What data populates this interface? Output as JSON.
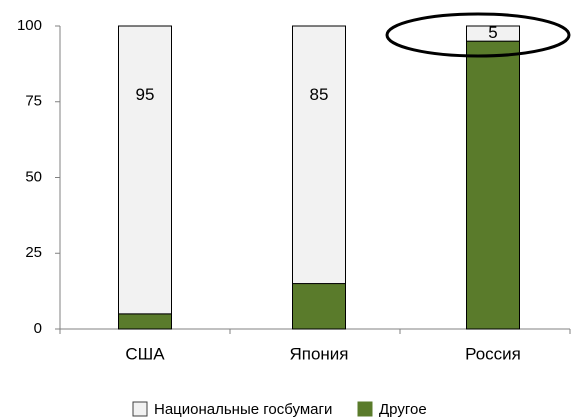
{
  "chart_data": {
    "type": "stacked_bar",
    "categories": [
      "США",
      "Япония",
      "Россия"
    ],
    "series": [
      {
        "name": "Национальные госбумаги",
        "color": "#f2f2f2",
        "values": [
          95,
          85,
          5
        ]
      },
      {
        "name": "Другое",
        "color": "#5a7b2b",
        "values": [
          5,
          15,
          95
        ]
      }
    ],
    "ylim": [
      0,
      100
    ],
    "yticks": [
      0,
      25,
      50,
      75,
      100
    ],
    "grid": false,
    "legend": "bottom"
  }
}
